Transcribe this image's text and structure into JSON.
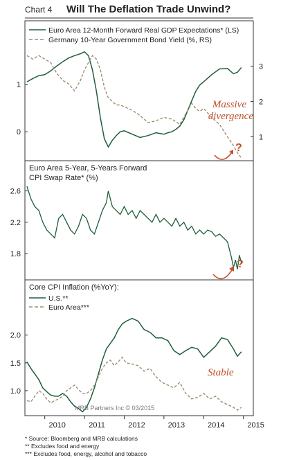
{
  "header": {
    "chart_number": "Chart 4",
    "title": "Will The Deflation Trade Unwind?"
  },
  "colors": {
    "green": "#1e5e3a",
    "tan": "#a08e70",
    "accent": "#c0502a",
    "frame": "#333333"
  },
  "credit": "MRB Partners Inc © 03/2015",
  "footnotes": [
    "*   Source: Bloomberg and MRB calculations",
    "**  Excludes food and energy",
    "*** Excludes food, energy, alcohol and tobacco"
  ],
  "x_axis": {
    "ticks": [
      2010,
      2011,
      2012,
      2013,
      2014,
      2015
    ],
    "labels": [
      "2010",
      "2011",
      "2012",
      "2013",
      "2014",
      "2015"
    ],
    "range": [
      2009.5,
      2015.25
    ]
  },
  "chart_data": [
    {
      "type": "line",
      "legend": [
        "Euro Area 12-Month Forward Real GDP Expectations* (LS)",
        "Germany 10-Year Government Bond Yield (%, RS)"
      ],
      "left_axis": {
        "ticks": [
          0,
          1
        ],
        "labels": [
          "0",
          "1"
        ],
        "range": [
          -0.55,
          1.75
        ]
      },
      "right_axis": {
        "ticks": [
          1,
          2,
          3
        ],
        "labels": [
          "1",
          "2",
          "3"
        ],
        "range": [
          0.4,
          3.5
        ]
      },
      "annotation": [
        "Massive",
        "divergence"
      ],
      "annotation_mark": "?",
      "series": [
        {
          "name": "Euro Area 12-Month Forward Real GDP Expectations* (LS)",
          "axis": "left",
          "style": "solid",
          "x": [
            2009.55,
            2009.7,
            2009.85,
            2010.0,
            2010.15,
            2010.3,
            2010.45,
            2010.6,
            2010.75,
            2010.9,
            2011.0,
            2011.1,
            2011.2,
            2011.3,
            2011.4,
            2011.5,
            2011.6,
            2011.7,
            2011.8,
            2011.9,
            2012.0,
            2012.2,
            2012.4,
            2012.6,
            2012.8,
            2013.0,
            2013.1,
            2013.2,
            2013.3,
            2013.4,
            2013.5,
            2013.6,
            2013.7,
            2013.8,
            2013.9,
            2014.0,
            2014.2,
            2014.4,
            2014.6,
            2014.75,
            2014.85,
            2014.95
          ],
          "y": [
            1.05,
            1.12,
            1.18,
            1.2,
            1.28,
            1.38,
            1.47,
            1.55,
            1.6,
            1.64,
            1.68,
            1.6,
            1.3,
            0.85,
            0.3,
            -0.15,
            -0.32,
            -0.18,
            -0.08,
            0.0,
            0.02,
            -0.05,
            -0.12,
            -0.08,
            -0.02,
            -0.05,
            -0.02,
            0.0,
            0.05,
            0.12,
            0.25,
            0.45,
            0.65,
            0.85,
            0.98,
            1.05,
            1.2,
            1.32,
            1.33,
            1.22,
            1.25,
            1.35
          ]
        },
        {
          "name": "Germany 10-Year Government Bond Yield (%, RS)",
          "axis": "right",
          "style": "dashed",
          "x": [
            2009.55,
            2009.7,
            2009.85,
            2010.0,
            2010.15,
            2010.3,
            2010.45,
            2010.6,
            2010.75,
            2010.9,
            2011.0,
            2011.1,
            2011.2,
            2011.3,
            2011.4,
            2011.5,
            2011.6,
            2011.7,
            2011.8,
            2011.9,
            2012.0,
            2012.2,
            2012.4,
            2012.6,
            2012.8,
            2013.0,
            2013.2,
            2013.4,
            2013.6,
            2013.7,
            2013.8,
            2013.9,
            2014.0,
            2014.2,
            2014.4,
            2014.6,
            2014.75,
            2014.85,
            2014.95
          ],
          "y": [
            3.3,
            3.2,
            3.3,
            3.2,
            3.1,
            2.8,
            2.6,
            2.5,
            2.3,
            2.6,
            2.9,
            3.1,
            3.3,
            3.2,
            2.9,
            2.4,
            2.1,
            2.0,
            1.9,
            1.9,
            1.85,
            1.75,
            1.6,
            1.4,
            1.45,
            1.55,
            1.5,
            1.35,
            1.75,
            1.95,
            1.8,
            1.72,
            1.8,
            1.55,
            1.35,
            1.0,
            0.75,
            0.55,
            0.4
          ]
        }
      ]
    },
    {
      "type": "line",
      "subtitle": [
        "Euro Area 5-Year, 5-Years Forward",
        "CPI Swap Rate* (%)"
      ],
      "left_axis": {
        "ticks": [
          1.8,
          2.2,
          2.6
        ],
        "labels": [
          "1.8",
          "2.2",
          "2.6"
        ],
        "range": [
          1.5,
          2.72
        ]
      },
      "annotation_mark": "?",
      "series": [
        {
          "name": "Euro Area 5-Year, 5-Years Forward CPI Swap Rate* (%)",
          "axis": "left",
          "style": "solid",
          "x": [
            2009.55,
            2009.65,
            2009.75,
            2009.85,
            2009.95,
            2010.05,
            2010.15,
            2010.25,
            2010.35,
            2010.45,
            2010.55,
            2010.65,
            2010.75,
            2010.85,
            2010.95,
            2011.05,
            2011.15,
            2011.25,
            2011.35,
            2011.45,
            2011.55,
            2011.6,
            2011.7,
            2011.8,
            2011.9,
            2012.0,
            2012.1,
            2012.2,
            2012.3,
            2012.4,
            2012.5,
            2012.6,
            2012.7,
            2012.8,
            2012.9,
            2013.0,
            2013.1,
            2013.2,
            2013.3,
            2013.4,
            2013.5,
            2013.6,
            2013.7,
            2013.8,
            2013.9,
            2014.0,
            2014.1,
            2014.2,
            2014.3,
            2014.4,
            2014.5,
            2014.6,
            2014.7,
            2014.75,
            2014.8,
            2014.85,
            2014.9,
            2014.95
          ],
          "y": [
            2.66,
            2.5,
            2.4,
            2.35,
            2.2,
            2.1,
            2.05,
            2.0,
            2.25,
            2.3,
            2.2,
            2.1,
            2.05,
            2.15,
            2.3,
            2.25,
            2.1,
            2.05,
            2.2,
            2.35,
            2.45,
            2.6,
            2.4,
            2.35,
            2.3,
            2.4,
            2.3,
            2.35,
            2.25,
            2.35,
            2.3,
            2.25,
            2.2,
            2.3,
            2.2,
            2.25,
            2.2,
            2.15,
            2.25,
            2.15,
            2.2,
            2.1,
            2.15,
            2.05,
            2.1,
            2.05,
            2.1,
            2.08,
            2.02,
            2.05,
            2.0,
            1.95,
            1.75,
            1.62,
            1.72,
            1.6,
            1.78,
            1.68
          ]
        }
      ]
    },
    {
      "type": "line",
      "subtitle": [
        "Core CPI Inflation (%YoY):"
      ],
      "left_axis": {
        "ticks": [
          1.0,
          1.5,
          2.0
        ],
        "labels": [
          "1.0",
          "1.5",
          "2.0"
        ],
        "range": [
          0.55,
          2.42
        ]
      },
      "annotation": [
        "Stable"
      ],
      "series": [
        {
          "name": "U.S.**",
          "axis": "left",
          "style": "solid",
          "x": [
            2009.55,
            2009.65,
            2009.75,
            2009.85,
            2009.95,
            2010.05,
            2010.15,
            2010.25,
            2010.35,
            2010.45,
            2010.55,
            2010.65,
            2010.75,
            2010.85,
            2010.95,
            2011.05,
            2011.15,
            2011.25,
            2011.35,
            2011.45,
            2011.55,
            2011.65,
            2011.75,
            2011.85,
            2011.95,
            2012.05,
            2012.2,
            2012.35,
            2012.5,
            2012.65,
            2012.8,
            2012.95,
            2013.1,
            2013.25,
            2013.4,
            2013.55,
            2013.7,
            2013.85,
            2014.0,
            2014.15,
            2014.3,
            2014.45,
            2014.6,
            2014.75,
            2014.85,
            2014.95
          ],
          "y": [
            1.52,
            1.4,
            1.3,
            1.2,
            1.05,
            0.98,
            0.92,
            0.9,
            0.9,
            0.95,
            0.9,
            0.8,
            0.72,
            0.68,
            0.62,
            0.7,
            0.85,
            1.05,
            1.3,
            1.55,
            1.75,
            1.85,
            1.95,
            2.1,
            2.2,
            2.25,
            2.3,
            2.25,
            2.1,
            2.05,
            1.95,
            1.95,
            1.9,
            1.72,
            1.65,
            1.72,
            1.78,
            1.75,
            1.6,
            1.7,
            1.8,
            1.95,
            1.92,
            1.75,
            1.62,
            1.7
          ]
        },
        {
          "name": "Euro Area***",
          "axis": "left",
          "style": "dashed",
          "x": [
            2009.55,
            2009.65,
            2009.75,
            2009.85,
            2009.95,
            2010.05,
            2010.15,
            2010.25,
            2010.35,
            2010.45,
            2010.55,
            2010.65,
            2010.75,
            2010.85,
            2010.95,
            2011.05,
            2011.15,
            2011.25,
            2011.35,
            2011.45,
            2011.55,
            2011.65,
            2011.75,
            2011.85,
            2011.95,
            2012.05,
            2012.2,
            2012.35,
            2012.5,
            2012.65,
            2012.8,
            2012.95,
            2013.1,
            2013.25,
            2013.4,
            2013.55,
            2013.7,
            2013.85,
            2014.0,
            2014.15,
            2014.3,
            2014.45,
            2014.6,
            2014.75,
            2014.85,
            2014.95
          ],
          "y": [
            0.82,
            0.8,
            0.9,
            1.0,
            0.95,
            0.85,
            0.78,
            0.82,
            0.85,
            0.9,
            1.0,
            1.05,
            1.1,
            1.02,
            0.95,
            0.95,
            1.0,
            1.1,
            1.25,
            1.4,
            1.5,
            1.55,
            1.45,
            1.52,
            1.6,
            1.5,
            1.48,
            1.45,
            1.35,
            1.4,
            1.25,
            1.15,
            1.1,
            1.05,
            1.15,
            0.95,
            0.85,
            0.88,
            0.95,
            0.85,
            0.9,
            0.8,
            0.75,
            0.7,
            0.65,
            0.7
          ]
        }
      ]
    }
  ]
}
